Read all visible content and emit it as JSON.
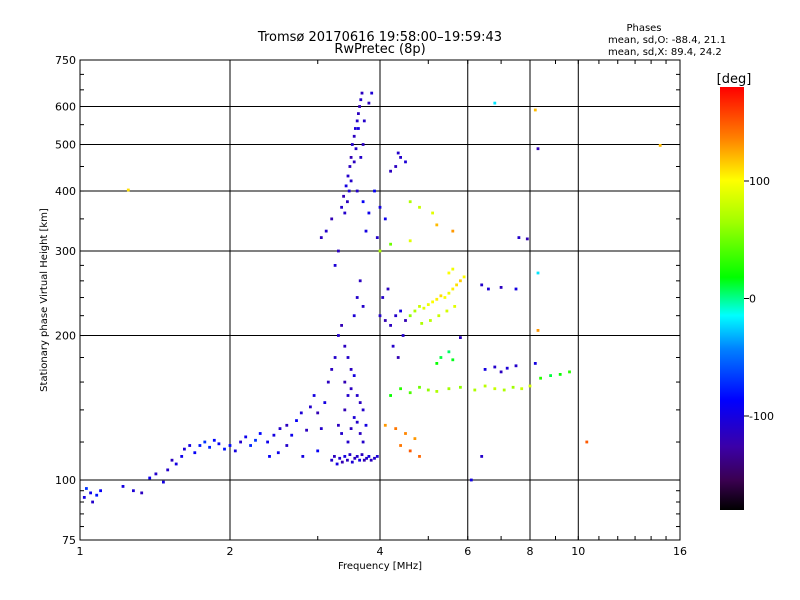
{
  "chart_data": {
    "type": "scatter",
    "title": "Tromsø 20170616 19:58:00–19:59:43",
    "subtitle": "RwPretec (8p)",
    "stats": {
      "heading": "Phases",
      "line1": "mean, sd,O: -88.4, 21.1",
      "line2": "mean, sd,X: 89.4, 24.2"
    },
    "xlabel": "Frequency [MHz]",
    "ylabel": "Stationary phase Virtual Height [km]",
    "x_scale": "log",
    "y_scale": "log",
    "xlim": [
      1,
      16
    ],
    "ylim": [
      75,
      750
    ],
    "x_ticks": [
      {
        "value": 1,
        "label": "1"
      },
      {
        "value": 2,
        "label": "2"
      },
      {
        "value": 4,
        "label": "4"
      },
      {
        "value": 6,
        "label": "6"
      },
      {
        "value": 8,
        "label": "8"
      },
      {
        "value": 10,
        "label": "10"
      },
      {
        "value": 16,
        "label": "16"
      }
    ],
    "y_ticks": [
      {
        "value": 75,
        "label": "75"
      },
      {
        "value": 100,
        "label": "100"
      },
      {
        "value": 200,
        "label": "200"
      },
      {
        "value": 300,
        "label": "300"
      },
      {
        "value": 400,
        "label": "400"
      },
      {
        "value": 500,
        "label": "500"
      },
      {
        "value": 600,
        "label": "600"
      },
      {
        "value": 750,
        "label": "750"
      }
    ],
    "grid": true,
    "colorbar": {
      "label": "[deg]",
      "range": [
        -180,
        180
      ],
      "ticks": [
        {
          "value": 100,
          "label": "100"
        },
        {
          "value": 0,
          "label": "0"
        },
        {
          "value": -100,
          "label": "-100"
        }
      ]
    },
    "points": [
      [
        1.02,
        92,
        -100
      ],
      [
        1.05,
        94,
        -95
      ],
      [
        1.08,
        93,
        -80
      ],
      [
        1.03,
        96,
        -70
      ],
      [
        1.06,
        90,
        -110
      ],
      [
        1.1,
        95,
        -90
      ],
      [
        1.22,
        97,
        -100
      ],
      [
        1.28,
        95,
        -105
      ],
      [
        1.33,
        94,
        -115
      ],
      [
        1.38,
        101,
        -95
      ],
      [
        1.42,
        103,
        -110
      ],
      [
        1.47,
        99,
        -100
      ],
      [
        1.5,
        105,
        -110
      ],
      [
        1.53,
        110,
        -115
      ],
      [
        1.56,
        108,
        -100
      ],
      [
        1.6,
        112,
        -95
      ],
      [
        1.62,
        116,
        -105
      ],
      [
        1.66,
        118,
        -100
      ],
      [
        1.7,
        114,
        -90
      ],
      [
        1.74,
        118,
        -80
      ],
      [
        1.78,
        120,
        -70
      ],
      [
        1.82,
        117,
        -75
      ],
      [
        1.86,
        121,
        -85
      ],
      [
        1.9,
        119,
        -90
      ],
      [
        1.95,
        116,
        -80
      ],
      [
        2.0,
        118,
        -85
      ],
      [
        2.05,
        115,
        -100
      ],
      [
        2.1,
        120,
        -110
      ],
      [
        2.15,
        123,
        -95
      ],
      [
        2.2,
        118,
        -75
      ],
      [
        2.25,
        121,
        -70
      ],
      [
        2.3,
        125,
        -85
      ],
      [
        2.38,
        120,
        -95
      ],
      [
        2.45,
        124,
        -100
      ],
      [
        2.52,
        128,
        -110
      ],
      [
        2.6,
        130,
        -115
      ],
      [
        2.66,
        124,
        -95
      ],
      [
        2.72,
        133,
        -90
      ],
      [
        2.78,
        138,
        -105
      ],
      [
        2.85,
        127,
        -115
      ],
      [
        2.9,
        142,
        -110
      ],
      [
        2.95,
        150,
        -100
      ],
      [
        3.0,
        138,
        -120
      ],
      [
        3.05,
        128,
        -110
      ],
      [
        3.1,
        145,
        -100
      ],
      [
        3.15,
        160,
        -115
      ],
      [
        3.2,
        110,
        -110
      ],
      [
        3.24,
        112,
        -115
      ],
      [
        3.28,
        108,
        -100
      ],
      [
        3.32,
        111,
        -110
      ],
      [
        3.36,
        109,
        -120
      ],
      [
        3.4,
        112,
        -100
      ],
      [
        3.44,
        110,
        -115
      ],
      [
        3.48,
        113,
        -110
      ],
      [
        3.52,
        109,
        -105
      ],
      [
        3.56,
        111,
        -115
      ],
      [
        3.6,
        112,
        -110
      ],
      [
        3.64,
        110,
        -100
      ],
      [
        3.68,
        113,
        -115
      ],
      [
        3.72,
        110,
        -120
      ],
      [
        3.76,
        111,
        -110
      ],
      [
        3.8,
        112,
        -100
      ],
      [
        3.84,
        110,
        -115
      ],
      [
        3.9,
        111,
        -110
      ],
      [
        3.95,
        112,
        -105
      ],
      [
        3.05,
        320,
        -115
      ],
      [
        3.12,
        330,
        -110
      ],
      [
        3.2,
        350,
        -120
      ],
      [
        3.25,
        280,
        -105
      ],
      [
        3.3,
        300,
        -115
      ],
      [
        3.35,
        370,
        -110
      ],
      [
        3.38,
        390,
        -120
      ],
      [
        3.42,
        410,
        -100
      ],
      [
        3.45,
        430,
        -110
      ],
      [
        3.48,
        450,
        -115
      ],
      [
        3.5,
        470,
        -120
      ],
      [
        3.52,
        500,
        -110
      ],
      [
        3.55,
        520,
        -115
      ],
      [
        3.57,
        540,
        -105
      ],
      [
        3.6,
        560,
        -110
      ],
      [
        3.62,
        580,
        -115
      ],
      [
        3.64,
        600,
        -120
      ],
      [
        3.66,
        620,
        -110
      ],
      [
        3.68,
        640,
        -115
      ],
      [
        3.62,
        540,
        -100
      ],
      [
        3.58,
        490,
        -110
      ],
      [
        3.55,
        460,
        -115
      ],
      [
        3.5,
        420,
        -110
      ],
      [
        3.47,
        400,
        -105
      ],
      [
        3.44,
        380,
        -115
      ],
      [
        3.4,
        360,
        -110
      ],
      [
        3.6,
        400,
        -110
      ],
      [
        3.7,
        380,
        -90
      ],
      [
        3.75,
        330,
        -100
      ],
      [
        3.8,
        360,
        -95
      ],
      [
        3.66,
        470,
        -110
      ],
      [
        3.7,
        500,
        -115
      ],
      [
        3.72,
        560,
        -110
      ],
      [
        3.8,
        610,
        -115
      ],
      [
        3.85,
        640,
        -105
      ],
      [
        3.9,
        400,
        -90
      ],
      [
        3.3,
        200,
        -110
      ],
      [
        3.35,
        210,
        -120
      ],
      [
        3.4,
        190,
        -115
      ],
      [
        3.45,
        180,
        -110
      ],
      [
        3.5,
        170,
        -115
      ],
      [
        3.55,
        220,
        -105
      ],
      [
        3.6,
        240,
        -110
      ],
      [
        3.65,
        260,
        -115
      ],
      [
        3.7,
        230,
        -110
      ],
      [
        3.4,
        160,
        -120
      ],
      [
        3.45,
        150,
        -110
      ],
      [
        3.5,
        155,
        -115
      ],
      [
        3.55,
        165,
        -100
      ],
      [
        3.6,
        150,
        -110
      ],
      [
        3.65,
        145,
        -115
      ],
      [
        3.7,
        140,
        -110
      ],
      [
        3.2,
        170,
        -115
      ],
      [
        3.25,
        180,
        -110
      ],
      [
        3.3,
        130,
        -115
      ],
      [
        3.35,
        125,
        -110
      ],
      [
        3.4,
        140,
        -120
      ],
      [
        3.45,
        120,
        -110
      ],
      [
        3.5,
        128,
        -115
      ],
      [
        3.55,
        135,
        -105
      ],
      [
        3.6,
        132,
        -110
      ],
      [
        3.65,
        125,
        -115
      ],
      [
        3.7,
        120,
        -110
      ],
      [
        3.75,
        130,
        -100
      ],
      [
        4.0,
        220,
        -110
      ],
      [
        4.1,
        215,
        -120
      ],
      [
        4.2,
        210,
        -115
      ],
      [
        4.3,
        220,
        -110
      ],
      [
        4.4,
        225,
        -100
      ],
      [
        4.5,
        215,
        -120
      ],
      [
        4.05,
        240,
        -110
      ],
      [
        4.15,
        250,
        -115
      ],
      [
        4.25,
        190,
        -110
      ],
      [
        4.35,
        180,
        -120
      ],
      [
        4.45,
        200,
        -110
      ],
      [
        4.3,
        450,
        -115
      ],
      [
        4.4,
        470,
        -110
      ],
      [
        4.5,
        460,
        -105
      ],
      [
        4.2,
        440,
        -115
      ],
      [
        4.35,
        480,
        -110
      ],
      [
        4.0,
        370,
        -100
      ],
      [
        4.1,
        350,
        -95
      ],
      [
        3.95,
        320,
        -110
      ],
      [
        4.6,
        220,
        60
      ],
      [
        4.7,
        225,
        70
      ],
      [
        4.8,
        230,
        80
      ],
      [
        4.9,
        228,
        90
      ],
      [
        5.0,
        232,
        95
      ],
      [
        5.1,
        235,
        100
      ],
      [
        5.2,
        238,
        105
      ],
      [
        5.3,
        242,
        110
      ],
      [
        5.4,
        240,
        100
      ],
      [
        5.5,
        245,
        95
      ],
      [
        5.6,
        250,
        105
      ],
      [
        5.7,
        255,
        110
      ],
      [
        5.8,
        260,
        115
      ],
      [
        5.9,
        265,
        100
      ],
      [
        5.65,
        230,
        90
      ],
      [
        5.45,
        225,
        85
      ],
      [
        5.25,
        220,
        80
      ],
      [
        5.05,
        215,
        75
      ],
      [
        4.85,
        212,
        70
      ],
      [
        5.5,
        270,
        100
      ],
      [
        5.6,
        275,
        95
      ],
      [
        4.2,
        150,
        20
      ],
      [
        4.4,
        155,
        30
      ],
      [
        4.6,
        152,
        40
      ],
      [
        4.8,
        156,
        50
      ],
      [
        5.0,
        154,
        60
      ],
      [
        5.2,
        153,
        70
      ],
      [
        5.5,
        155,
        65
      ],
      [
        5.8,
        156,
        60
      ],
      [
        6.2,
        154,
        70
      ],
      [
        6.5,
        157,
        75
      ],
      [
        6.8,
        155,
        80
      ],
      [
        7.1,
        154,
        70
      ],
      [
        7.4,
        156,
        65
      ],
      [
        7.7,
        155,
        80
      ],
      [
        8.0,
        157,
        85
      ],
      [
        8.4,
        163,
        30
      ],
      [
        8.8,
        165,
        10
      ],
      [
        9.2,
        166,
        20
      ],
      [
        9.6,
        168,
        30
      ],
      [
        6.5,
        170,
        -100
      ],
      [
        6.8,
        172,
        -110
      ],
      [
        7.0,
        168,
        -115
      ],
      [
        7.2,
        171,
        -105
      ],
      [
        7.5,
        173,
        -110
      ],
      [
        8.2,
        175,
        -100
      ],
      [
        4.1,
        130,
        130
      ],
      [
        4.3,
        128,
        140
      ],
      [
        4.5,
        125,
        135
      ],
      [
        4.7,
        122,
        130
      ],
      [
        4.4,
        118,
        140
      ],
      [
        4.6,
        115,
        150
      ],
      [
        4.8,
        112,
        145
      ],
      [
        4.0,
        300,
        70
      ],
      [
        4.2,
        310,
        50
      ],
      [
        4.6,
        315,
        90
      ],
      [
        5.2,
        340,
        120
      ],
      [
        5.6,
        330,
        130
      ],
      [
        5.2,
        175,
        20
      ],
      [
        5.3,
        180,
        10
      ],
      [
        5.5,
        185,
        5
      ],
      [
        5.6,
        178,
        15
      ],
      [
        4.6,
        380,
        70
      ],
      [
        4.8,
        370,
        80
      ],
      [
        5.1,
        360,
        90
      ],
      [
        6.4,
        255,
        -110
      ],
      [
        6.6,
        250,
        -105
      ],
      [
        7.0,
        252,
        -115
      ],
      [
        7.5,
        250,
        -100
      ],
      [
        8.3,
        270,
        -20
      ],
      [
        7.6,
        320,
        -110
      ],
      [
        7.9,
        318,
        -120
      ],
      [
        8.3,
        490,
        -120
      ],
      [
        8.2,
        590,
        120
      ],
      [
        6.8,
        610,
        -20
      ],
      [
        14.6,
        498,
        120
      ],
      [
        1.25,
        402,
        110
      ],
      [
        10.4,
        120,
        150
      ],
      [
        8.3,
        205,
        130
      ],
      [
        5.8,
        198,
        -115
      ],
      [
        6.4,
        112,
        -110
      ],
      [
        6.1,
        100,
        -100
      ],
      [
        3.0,
        115,
        -90
      ],
      [
        2.8,
        112,
        -100
      ],
      [
        2.6,
        118,
        -110
      ],
      [
        2.5,
        114,
        -95
      ],
      [
        2.4,
        112,
        -90
      ]
    ]
  }
}
